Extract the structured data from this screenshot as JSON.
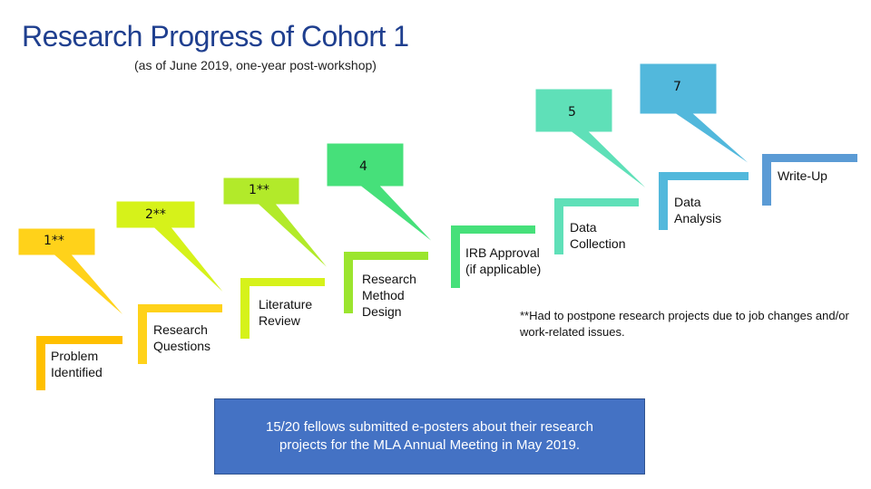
{
  "title": "Research Progress of Cohort 1",
  "subtitle": "(as of June 2019, one-year post-workshop)",
  "steps": [
    {
      "label": "Problem Identified",
      "count": "1**"
    },
    {
      "label": "Research Questions",
      "count": "2**"
    },
    {
      "label": "Literature Review",
      "count": "1**"
    },
    {
      "label": "Research Method Design",
      "count": "4"
    },
    {
      "label": "IRB Approval (if applicable)",
      "count": ""
    },
    {
      "label": "Data Collection",
      "count": "5"
    },
    {
      "label": "Data Analysis",
      "count": "7"
    },
    {
      "label": "Write-Up",
      "count": ""
    }
  ],
  "colors": {
    "title": "#1f3f8f",
    "yellow": "#ffc000",
    "yellow_green": "#d6f21a",
    "lime": "#9be52e",
    "green": "#46e07a",
    "teal": "#5fe0b8",
    "sky": "#52b8dc",
    "blue": "#5b9bd5",
    "summary_bg": "#4472c4"
  },
  "note": "**Had to postpone research projects due to job changes and/or work-related issues.",
  "summary": "15/20 fellows submitted e-posters about their research projects for the MLA Annual Meeting in May 2019."
}
